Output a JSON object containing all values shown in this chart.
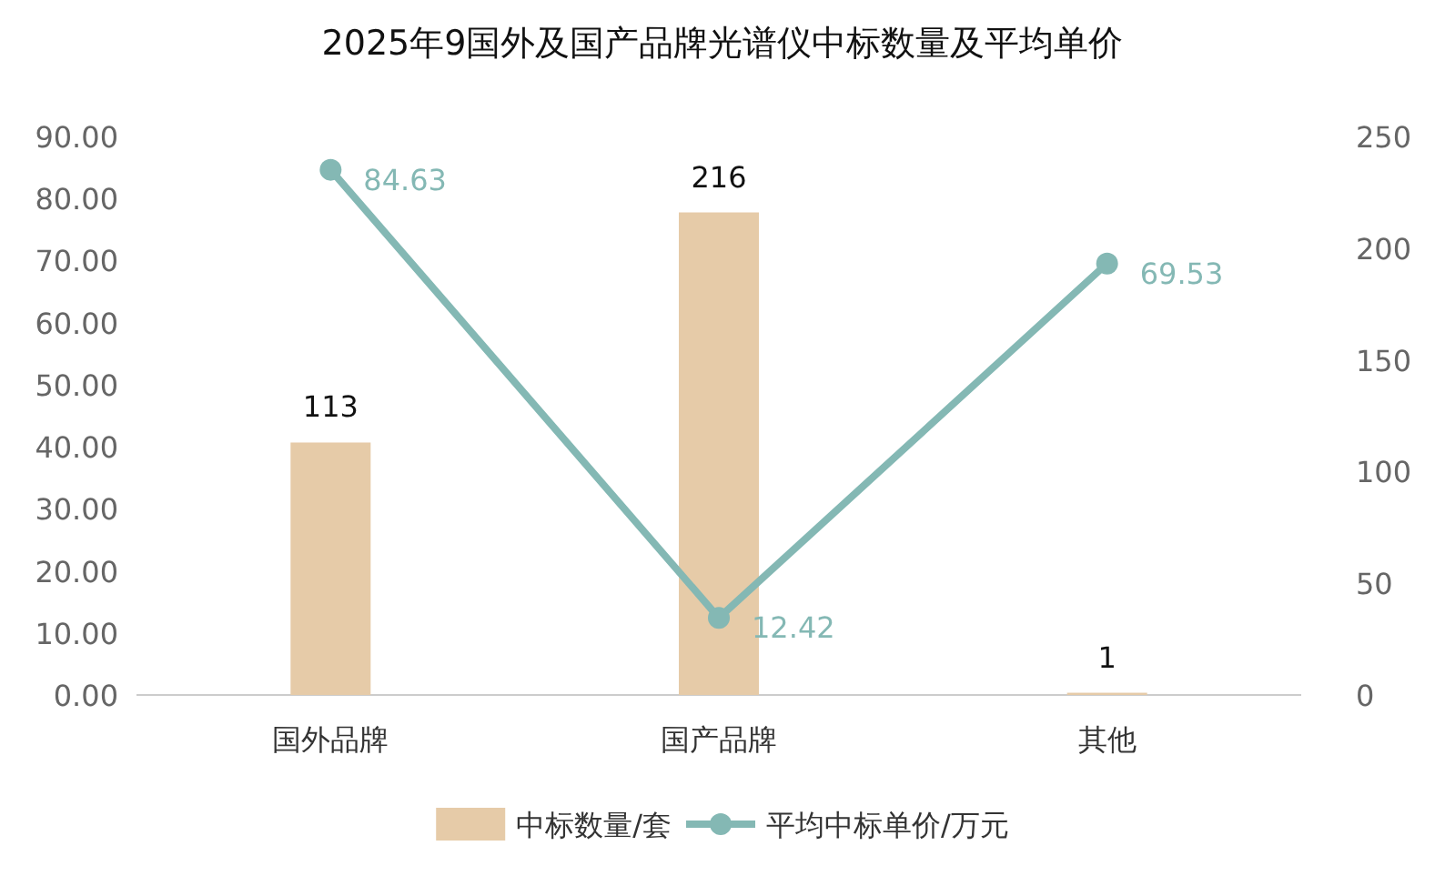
{
  "chart_data": {
    "type": "bar",
    "title": "2025年9国外及国产品牌光谱仪中标数量及平均单价",
    "categories": [
      "国外品牌",
      "国产品牌",
      "其他"
    ],
    "series": [
      {
        "name": "中标数量/套",
        "type": "bar",
        "axis": "y2",
        "color": "#e6cba8",
        "values": [
          113,
          216,
          1
        ]
      },
      {
        "name": "平均中标单价/万元",
        "type": "line",
        "color": "#84b8b4",
        "values": [
          84.63,
          12.42,
          69.53
        ]
      }
    ],
    "ylim": [
      0,
      90
    ],
    "yticks": [
      {
        "value": 0,
        "label": "0.00"
      },
      {
        "value": 10,
        "label": "10.00"
      },
      {
        "value": 20,
        "label": "20.00"
      },
      {
        "value": 30,
        "label": "30.00"
      },
      {
        "value": 40,
        "label": "40.00"
      },
      {
        "value": 50,
        "label": "50.00"
      },
      {
        "value": 60,
        "label": "60.00"
      },
      {
        "value": 70,
        "label": "70.00"
      },
      {
        "value": 80,
        "label": "80.00"
      },
      {
        "value": 90,
        "label": "90.00"
      }
    ],
    "y2lim": [
      0,
      250
    ],
    "y2ticks": [
      0,
      50,
      100,
      150,
      200,
      250
    ],
    "data_labels": true,
    "legend": "bottom",
    "marker": "circle",
    "line_style": "solid"
  }
}
